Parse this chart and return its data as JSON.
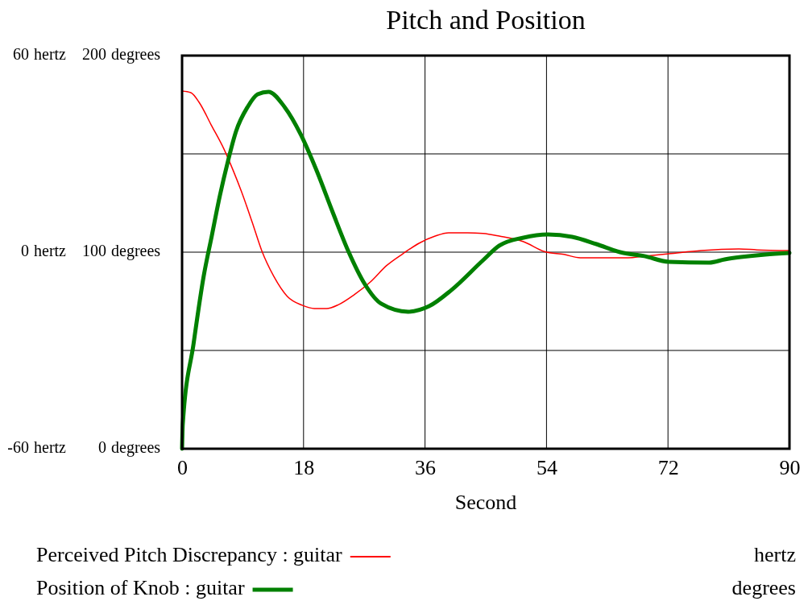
{
  "chart_data": {
    "type": "line",
    "title": "Pitch and Position",
    "xlabel": "Second",
    "xlim": [
      0,
      90
    ],
    "xticks": [
      0,
      18,
      36,
      54,
      72,
      90
    ],
    "ylim": [
      -60,
      60
    ],
    "yticks": [
      {
        "value": -60,
        "label": "-60 hertz"
      },
      {
        "value": -30,
        "label": null
      },
      {
        "value": 0,
        "label": "0 hertz"
      },
      {
        "value": 30,
        "label": null
      },
      {
        "value": 60,
        "label": "60 hertz"
      }
    ],
    "y2lim": [
      0,
      200
    ],
    "y2ticks": [
      {
        "value": 0,
        "label": "0 degrees"
      },
      {
        "value": 100,
        "label": "100 degrees"
      },
      {
        "value": 200,
        "label": "200 degrees"
      }
    ],
    "annotations": [
      "hertz",
      "degrees"
    ],
    "grid": true,
    "legend": "bottom",
    "series": [
      {
        "name": "Perceived Pitch Discrepancy : guitar",
        "color": "#ff0000",
        "x": [
          0,
          1.3,
          2.6,
          4.3,
          6.2,
          7.6,
          8.8,
          10.4,
          11.8,
          13.6,
          15.6,
          17.8,
          19.6,
          21.4,
          23.2,
          25.5,
          27.9,
          30.3,
          32.7,
          35.1,
          37.5,
          39.5,
          42.3,
          44.6,
          47,
          50.6,
          53.7,
          56.6,
          59,
          66.1,
          68.5,
          72.1,
          76.9,
          82.5,
          85.2,
          90
        ],
        "values": [
          49.2,
          48.7,
          45.5,
          38.9,
          31.5,
          24.8,
          18.5,
          9.1,
          0.5,
          -7.4,
          -13.5,
          -16.2,
          -17.2,
          -17.2,
          -16,
          -13,
          -9.1,
          -4.1,
          -0.5,
          2.7,
          4.9,
          5.9,
          5.9,
          5.7,
          4.9,
          3.2,
          0.2,
          -0.7,
          -1.7,
          -1.7,
          -1.2,
          -0.5,
          0.5,
          1,
          0.7,
          0.5
        ]
      },
      {
        "name": "Position of Knob : guitar",
        "color": "#008000",
        "axis": "y2",
        "x": [
          0,
          0.1,
          1.7,
          3.2,
          4.4,
          5.6,
          6.8,
          8,
          9.7,
          11.2,
          12.8,
          15.2,
          17.6,
          20,
          22.3,
          24.7,
          27.1,
          29.5,
          33.5,
          36.6,
          39.9,
          44.6,
          47,
          50.6,
          54.2,
          57.8,
          61.4,
          64.9,
          68.5,
          72.1,
          78.1,
          80.4,
          82.8,
          86.4,
          90
        ],
        "values": [
          0,
          12.3,
          53.3,
          87.7,
          108.2,
          128.7,
          146.3,
          161.5,
          173.8,
          180.3,
          181.6,
          173.8,
          159.8,
          141,
          120.5,
          100,
          83.6,
          73.8,
          69.7,
          72.5,
          80.7,
          95.9,
          103.3,
          107.4,
          109,
          107.8,
          104.1,
          100,
          98,
          95.1,
          94.7,
          96.3,
          97.5,
          98.8,
          99.6
        ]
      }
    ]
  }
}
